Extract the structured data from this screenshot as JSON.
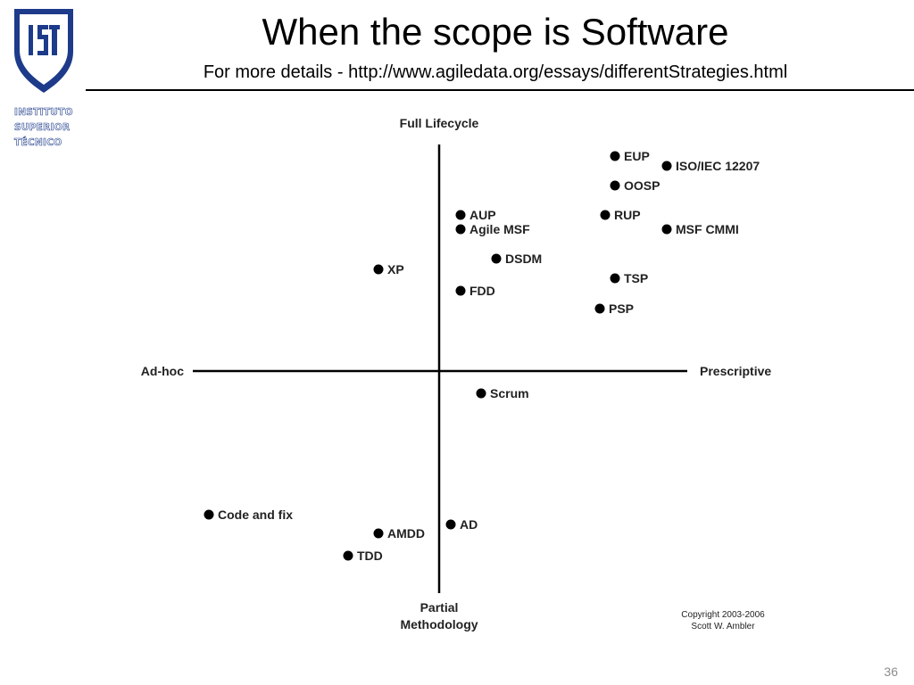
{
  "slide": {
    "title": "When the scope is Software",
    "subtitle": "For more details - http://www.agiledata.org/essays/differentStrategies.html",
    "number": "36"
  },
  "logo": {
    "lines": [
      "INSTITUTO",
      "SUPERIOR",
      "TÉCNICO"
    ],
    "color": "#1d3b8a"
  },
  "diagram": {
    "axis_top": "Full Lifecycle",
    "axis_bottom_line1": "Partial",
    "axis_bottom_line2": "Methodology",
    "axis_left": "Ad-hoc",
    "axis_right": "Prescriptive",
    "copyright_line1": "Copyright 2003-2006",
    "copyright_line2": "Scott W. Ambler",
    "methods": [
      "EUP",
      "ISO/IEC 12207",
      "OOSP",
      "AUP",
      "Agile MSF",
      "RUP",
      "MSF CMMI",
      "DSDM",
      "XP",
      "TSP",
      "FDD",
      "PSP",
      "Scrum",
      "Code and fix",
      "AD",
      "AMDD",
      "TDD"
    ]
  }
}
